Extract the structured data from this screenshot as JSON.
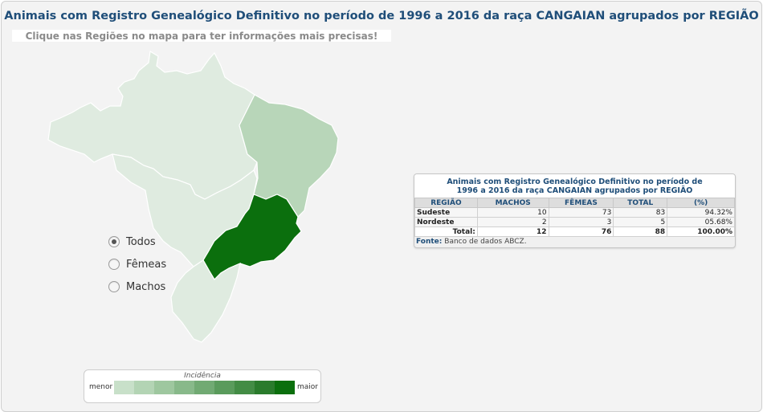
{
  "header": {
    "title": "Animais com Registro Genealógico Definitivo no período de 1996 a 2016 da raça CANGAIAN agrupados por REGIÃO",
    "subtitle": "Clique nas Regiões no mapa para ter informações mais precisas!"
  },
  "map": {
    "regions": [
      {
        "name": "Norte",
        "color": "#dfebe0"
      },
      {
        "name": "Nordeste",
        "color": "#b8d6b9"
      },
      {
        "name": "Centro-Oeste",
        "color": "#dfebe0"
      },
      {
        "name": "Sudeste",
        "color": "#0b6f0d"
      },
      {
        "name": "Sul",
        "color": "#dfebe0"
      }
    ],
    "border_color": "#ffffff"
  },
  "filters": {
    "options": [
      {
        "label": "Todos",
        "checked": true
      },
      {
        "label": "Fêmeas",
        "checked": false
      },
      {
        "label": "Machos",
        "checked": false
      }
    ]
  },
  "legend": {
    "title": "Incidência",
    "min_label": "menor",
    "max_label": "maior",
    "colors": [
      "#c8e0c9",
      "#b3d4b4",
      "#9ec79f",
      "#88b98a",
      "#71aa73",
      "#5a9b5c",
      "#438c45",
      "#2a7b2c",
      "#0b6f0d"
    ]
  },
  "table": {
    "title": "Animais com Registro Genealógico Definitivo no período de 1996 a 2016 da raça CANGAIAN agrupados por REGIÃO",
    "headers": [
      "REGIÃO",
      "MACHOS",
      "FÊMEAS",
      "TOTAL",
      "(%)"
    ],
    "rows": [
      [
        "Sudeste",
        "10",
        "73",
        "83",
        "94.32%"
      ],
      [
        "Nordeste",
        "2",
        "3",
        "5",
        "05.68%"
      ]
    ],
    "total": {
      "label": "Total:",
      "machos": "12",
      "femeas": "76",
      "total": "88",
      "pct": "100.00%"
    },
    "source_label": "Fonte:",
    "source_text": "Banco de dados ABCZ."
  }
}
